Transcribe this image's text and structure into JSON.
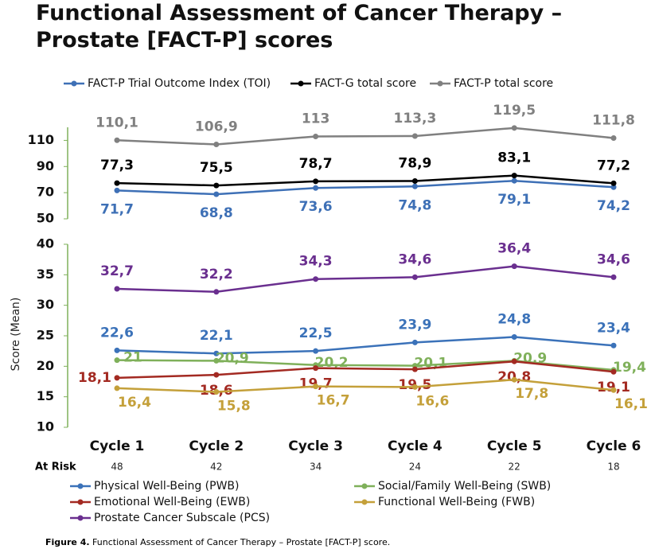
{
  "title": "Functional Assessment of Cancer Therapy – Prostate [FACT-P] scores",
  "y_label": "Score (Mean)",
  "chart_data": [
    {
      "type": "line",
      "ylim": [
        50,
        120
      ],
      "yticks": [
        50,
        70,
        90,
        110
      ],
      "series": [
        {
          "name": "FACT-P Trial Outcome Index (TOI)",
          "color": "#3e70b6",
          "values": [
            71.7,
            68.8,
            73.6,
            74.8,
            79.1,
            74.2
          ],
          "value_labels": [
            "71,7",
            "68,8",
            "73,6",
            "74,8",
            "79,1",
            "74,2"
          ]
        },
        {
          "name": "FACT-G total score",
          "color": "#000000",
          "values": [
            77.3,
            75.5,
            78.7,
            78.9,
            83.1,
            77.2
          ],
          "value_labels": [
            "77,3",
            "75,5",
            "78,7",
            "78,9",
            "83,1",
            "77,2"
          ]
        },
        {
          "name": "FACT-P total score",
          "color": "#808080",
          "values": [
            110.1,
            106.9,
            113,
            113.3,
            119.5,
            111.8
          ],
          "value_labels": [
            "110,1",
            "106,9",
            "113",
            "113,3",
            "119,5",
            "111,8"
          ]
        }
      ]
    },
    {
      "type": "line",
      "ylim": [
        10,
        40
      ],
      "yticks": [
        10,
        15,
        20,
        25,
        30,
        35,
        40
      ],
      "categories": [
        "Cycle 1",
        "Cycle 2",
        "Cycle 3",
        "Cycle 4",
        "Cycle 5",
        "Cycle 6"
      ],
      "series": [
        {
          "name": "Physical Well-Being (PWB)",
          "color": "#3b72b9",
          "values": [
            22.6,
            22.1,
            22.5,
            23.9,
            24.8,
            23.4
          ],
          "value_labels": [
            "22,6",
            "22,1",
            "22,5",
            "23,9",
            "24,8",
            "23,4"
          ]
        },
        {
          "name": "Social/Family Well-Being (SWB)",
          "color": "#7fb05a",
          "values": [
            21,
            20.9,
            20.2,
            20.1,
            20.9,
            19.4
          ],
          "value_labels": [
            "21",
            "20,9",
            "20,2",
            "20,1",
            "20,9",
            "19,4"
          ]
        },
        {
          "name": "Emotional Well-Being (EWB)",
          "color": "#a32a22",
          "values": [
            18.1,
            18.6,
            19.7,
            19.5,
            20.8,
            19.1
          ],
          "value_labels": [
            "18,1",
            "18,6",
            "19,7",
            "19,5",
            "20,8",
            "19,1"
          ]
        },
        {
          "name": "Functional Well-Being (FWB)",
          "color": "#c4a03a",
          "values": [
            16.4,
            15.8,
            16.7,
            16.6,
            17.8,
            16.1
          ],
          "value_labels": [
            "16,4",
            "15,8",
            "16,7",
            "16,6",
            "17,8",
            "16,1"
          ]
        },
        {
          "name": "Prostate Cancer Subscale (PCS)",
          "color": "#6a2f8f",
          "values": [
            32.7,
            32.2,
            34.3,
            34.6,
            36.4,
            34.6
          ],
          "value_labels": [
            "32,7",
            "32,2",
            "34,3",
            "34,6",
            "36,4",
            "34,6"
          ]
        }
      ]
    }
  ],
  "at_risk": {
    "label": "At Risk",
    "values": [
      48,
      42,
      34,
      24,
      22,
      18
    ]
  },
  "caption": {
    "figure": "Figure 4.",
    "text": "Functional Assessment of Cancer Therapy – Prostate [FACT-P] score."
  }
}
